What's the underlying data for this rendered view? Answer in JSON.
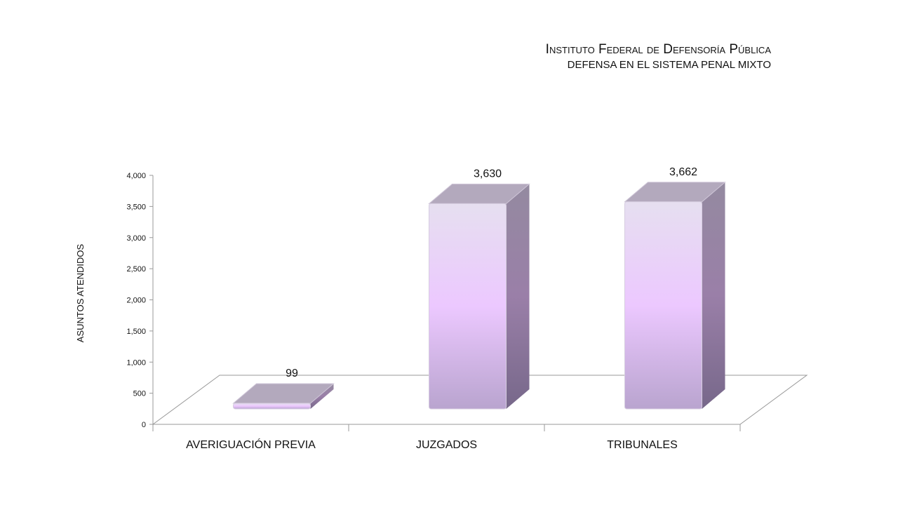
{
  "header": {
    "title": "Instituto Federal de Defensoría Pública",
    "subtitle": "DEFENSA EN EL SISTEMA PENAL MIXTO"
  },
  "chart_data": {
    "type": "bar",
    "categories": [
      "AVERIGUACIÓN PREVIA",
      "JUZGADOS",
      "TRIBUNALES"
    ],
    "values": [
      99,
      3630,
      3662
    ],
    "data_labels": [
      "99",
      "3,630",
      "3,662"
    ],
    "ylabel": "ASUNTOS ATENDIDOS",
    "xlabel": "",
    "ylim": [
      0,
      4000
    ],
    "yticks": [
      "0",
      "500",
      "1,000",
      "1,500",
      "2,000",
      "2,500",
      "3,000",
      "3,500",
      "4,000"
    ],
    "grid": false,
    "legend": "none",
    "style": "3d-column",
    "colors": {
      "front_top": "#e6dff0",
      "front_mid": "#ecc8ff",
      "front_bottom": "#b9a4cf",
      "side": "#8b7a9c",
      "top": "#b3a9bd"
    }
  }
}
